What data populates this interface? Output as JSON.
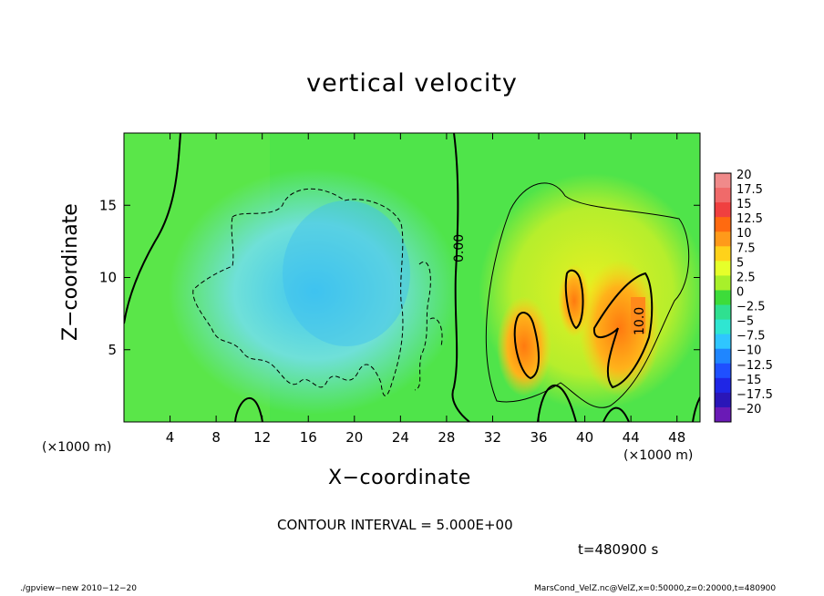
{
  "title": "vertical velocity",
  "xlabel": "X−coordinate",
  "ylabel": "Z−coordinate",
  "x_unit_left": "(×1000 m)",
  "x_unit_right": "(×1000 m)",
  "contour_interval": "CONTOUR INTERVAL = 5.000E+00",
  "time_label": "t=480900 s",
  "footer_left": "./gpview−new  2010−12−20",
  "footer_right": "MarsCond_VelZ.nc@VelZ,x=0:50000,z=0:20000,t=480900",
  "contour_label_zero": "0.00",
  "contour_label_ten": "10.0",
  "chart_data": {
    "type": "heatmap",
    "title": "vertical velocity",
    "xlabel": "X−coordinate",
    "ylabel": "Z−coordinate",
    "x_unit": "(×1000 m)",
    "xlim": [
      0,
      50
    ],
    "ylim": [
      0,
      20
    ],
    "x_ticks": [
      4,
      8,
      12,
      16,
      20,
      24,
      28,
      32,
      36,
      40,
      44,
      48
    ],
    "y_ticks": [
      5,
      10,
      15
    ],
    "colorbar": {
      "levels": [
        20,
        17.5,
        15,
        12.5,
        10,
        7.5,
        5,
        2.5,
        0,
        -2.5,
        -5,
        -7.5,
        -10,
        -12.5,
        -15,
        -17.5,
        -20
      ],
      "labels": [
        "20",
        "17.5",
        "15",
        "12.5",
        "10",
        "7.5",
        "5",
        "2.5",
        "0",
        "−2.5",
        "−5",
        "−7.5",
        "−10",
        "−12.5",
        "−15",
        "−17.5",
        "−20"
      ],
      "colors": [
        "#f08a8a",
        "#f06a6a",
        "#f04040",
        "#ff6a10",
        "#ff9a1a",
        "#ffd21a",
        "#e6ff2a",
        "#a8f02a",
        "#3ddc3a",
        "#2fe090",
        "#2fe6d2",
        "#2fc6ff",
        "#1f86ff",
        "#1f50ff",
        "#1f26e6",
        "#2a16b8",
        "#6a1ab6"
      ]
    },
    "contour_interval": 5.0,
    "time": "t=480900 s",
    "features": [
      {
        "region": "updraft core",
        "x_range": [
          32,
          46
        ],
        "z_range": [
          2,
          11
        ],
        "max_value": 10
      },
      {
        "region": "downdraft",
        "x_range": [
          6,
          28
        ],
        "z_range": [
          2,
          16
        ],
        "min_value": -7.5
      }
    ]
  }
}
